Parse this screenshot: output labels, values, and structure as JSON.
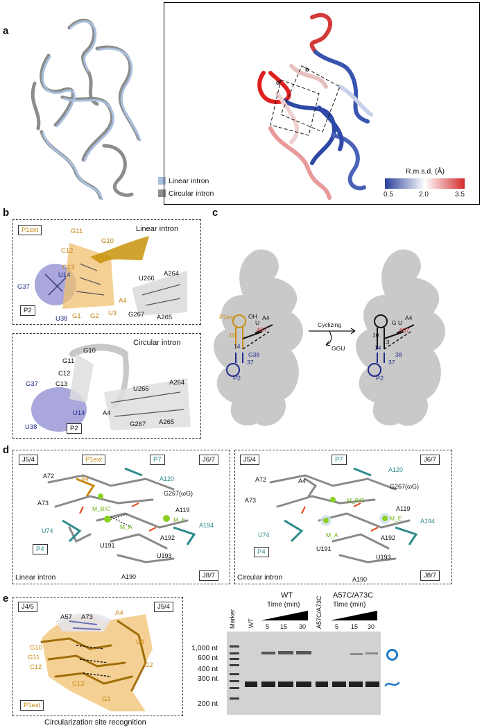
{
  "panels": {
    "a": {
      "label": "a",
      "legend": {
        "linear": "Linear intron",
        "circular": "Circular intron",
        "linear_color": "#a9bfe0",
        "circular_color": "#8f8f8f"
      },
      "rmsd": {
        "title": "R.m.s.d. (Å)",
        "ticks": [
          "0.5",
          "2.0",
          "3.5"
        ],
        "colors": [
          "#2a3f9a",
          "#ffffff",
          "#d42a2a"
        ]
      },
      "box_labels": [
        "b",
        "d"
      ]
    },
    "b": {
      "label": "b",
      "top": {
        "title": "Linear intron",
        "tags": [
          "P1ext",
          "P2"
        ],
        "labels": [
          "G11",
          "G10",
          "C12",
          "C13",
          "U14",
          "G37",
          "U38",
          "G1",
          "G2",
          "U3",
          "A4",
          "U266",
          "A264",
          "G267",
          "A265"
        ]
      },
      "bottom": {
        "title": "Circular intron",
        "tags": [
          "P2"
        ],
        "labels": [
          "G10",
          "G11",
          "C12",
          "C13",
          "G37",
          "U14",
          "U38",
          "A4",
          "U266",
          "A264",
          "G267",
          "A265"
        ]
      }
    },
    "c": {
      "label": "c",
      "arrow_label": "Cyclizing",
      "byproduct": "GGU",
      "left": {
        "p1ext": "P1ext",
        "p2": "P2",
        "texts": [
          "OH",
          "U",
          "A4",
          "A57",
          "10",
          "14",
          "G38",
          "37"
        ]
      },
      "right": {
        "p2": "P2",
        "texts": [
          "G",
          "U",
          "A4",
          "A57",
          "10",
          "13",
          "14",
          "37",
          "38"
        ]
      }
    },
    "d": {
      "label": "d",
      "left": {
        "title": "Linear intron",
        "tags": [
          "J5/4",
          "P1ext",
          "P7",
          "J6/7",
          "P4",
          "J8/7"
        ],
        "labels": [
          "A72",
          "A4",
          "A120",
          "G267(ωG)",
          "A73",
          "M_B/C",
          "A119",
          "M_E",
          "A194",
          "U74",
          "M_A",
          "A192",
          "U191",
          "U193",
          "A190"
        ]
      },
      "right": {
        "title": "Circular intron",
        "tags": [
          "J5/4",
          "P7",
          "J6/7",
          "P4",
          "J8/7"
        ],
        "labels": [
          "A72",
          "A4",
          "A120",
          "G267(ωG)",
          "A73",
          "M_B/C",
          "A119",
          "M_E",
          "A194",
          "U74",
          "M_A",
          "A192",
          "U191",
          "U193",
          "A190"
        ]
      }
    },
    "e": {
      "label": "e",
      "caption": "Circularization site recognition",
      "tags": [
        "J4/5",
        "J5/4",
        "P1ext"
      ],
      "labels": [
        "A57",
        "A73",
        "A4",
        "G10",
        "U3",
        "G11",
        "C12",
        "G2",
        "C13",
        "G1"
      ],
      "gel": {
        "marker_label": "Marker",
        "wt_header": "WT",
        "mut_header": "A57C/A73C",
        "time_label": "Time (min)",
        "lane_labels": [
          "WT",
          "5",
          "15",
          "30",
          "A57C/A73C",
          "5",
          "15",
          "30"
        ],
        "sizes": [
          "1,000 nt",
          "600 nt",
          "400 nt",
          "300 nt",
          "200 nt"
        ]
      }
    }
  }
}
